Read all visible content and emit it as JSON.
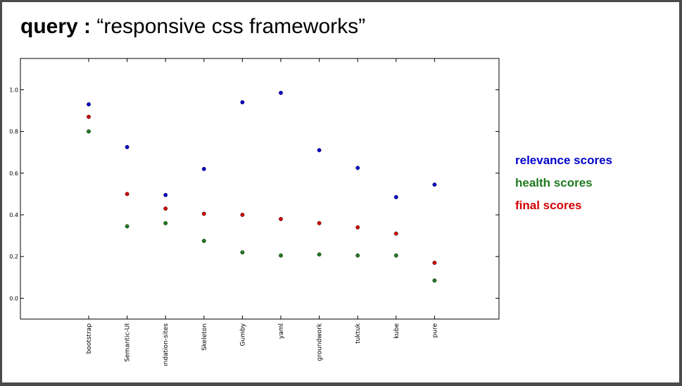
{
  "title": {
    "query_label": "query :",
    "query_text": "“responsive css frameworks”"
  },
  "colors": {
    "relevance": "#0000cc",
    "health": "#1f7a1f",
    "final": "#d10000"
  },
  "chart_data": {
    "type": "scatter",
    "categories": [
      "bootstrap",
      "Semantic-UI",
      "ındation-sites",
      "Skeleton",
      "Gumby",
      "yaml",
      "groundwork",
      "tuktuk",
      "kube",
      "pure"
    ],
    "series": [
      {
        "name": "relevance scores",
        "values": [
          0.93,
          0.725,
          0.495,
          0.62,
          0.94,
          0.985,
          0.71,
          0.625,
          0.485,
          0.545
        ]
      },
      {
        "name": "health scores",
        "values": [
          0.8,
          0.345,
          0.36,
          0.275,
          0.22,
          0.205,
          0.21,
          0.205,
          0.205,
          0.085
        ]
      },
      {
        "name": "final scores",
        "values": [
          0.87,
          0.5,
          0.43,
          0.405,
          0.4,
          0.38,
          0.36,
          0.34,
          0.31,
          0.17
        ]
      }
    ],
    "yticks": [
      "0.0",
      "0.2",
      "0.4",
      "0.6",
      "0.8",
      "1.0"
    ],
    "ylim": [
      -0.1,
      1.15
    ],
    "xlabel": "",
    "ylabel": "",
    "grid": false,
    "legend": "right"
  }
}
